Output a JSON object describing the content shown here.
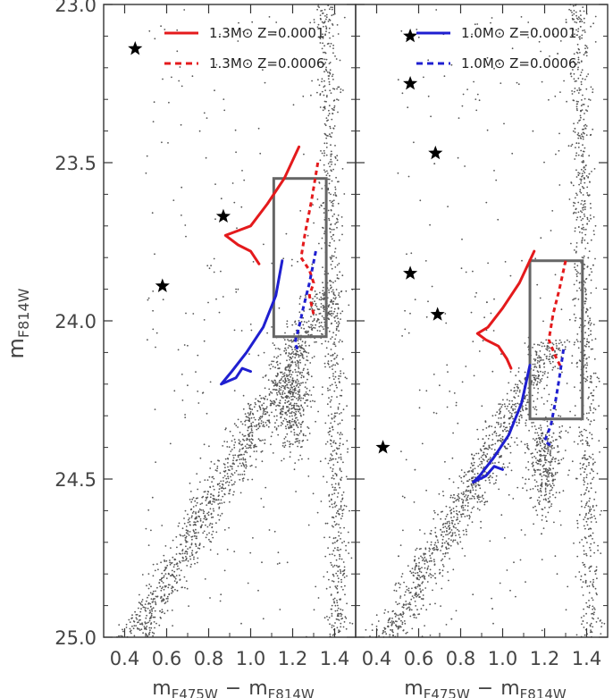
{
  "chart_data": [
    {
      "type": "scatter",
      "panel": "left",
      "xlabel": {
        "main": "m",
        "sub1": "F475W",
        "minus": "−",
        "sub2": "F814W"
      },
      "ylabel": {
        "main": "m",
        "sub": "F814W"
      },
      "xlim": [
        0.3,
        1.5
      ],
      "ylim": [
        25.0,
        23.0
      ],
      "xticks": [
        "0.4",
        "0.6",
        "0.8",
        "1.0",
        "1.2",
        "1.4"
      ],
      "yticks": [
        "23.0",
        "23.5",
        "24.0",
        "24.5",
        "25.0"
      ],
      "legend": [
        {
          "label": "1.3M⊙ Z=0.0001",
          "color": "#e41a1c",
          "style": "solid"
        },
        {
          "label": "1.3M⊙ Z=0.0006",
          "color": "#e41a1c",
          "style": "dashed"
        }
      ],
      "series": [
        {
          "name": "1.3M⊙ Z=0.0001",
          "color": "#e41a1c",
          "style": "solid",
          "points": [
            [
              1.23,
              23.45
            ],
            [
              1.16,
              23.55
            ],
            [
              1.08,
              23.63
            ],
            [
              1.0,
              23.7
            ],
            [
              0.92,
              23.72
            ],
            [
              0.88,
              23.73
            ],
            [
              0.94,
              23.76
            ],
            [
              1.0,
              23.78
            ],
            [
              1.04,
              23.82
            ]
          ]
        },
        {
          "name": "1.3M⊙ Z=0.0006",
          "color": "#e41a1c",
          "style": "dashed",
          "points": [
            [
              1.32,
              23.5
            ],
            [
              1.29,
              23.62
            ],
            [
              1.26,
              23.72
            ],
            [
              1.24,
              23.8
            ],
            [
              1.28,
              23.84
            ],
            [
              1.3,
              23.88
            ],
            [
              1.28,
              23.92
            ],
            [
              1.3,
              23.98
            ]
          ]
        },
        {
          "name": "1.0M⊙ Z=0.0001",
          "color": "#1f1fd0",
          "style": "solid",
          "points": [
            [
              1.15,
              23.81
            ],
            [
              1.12,
              23.92
            ],
            [
              1.06,
              24.02
            ],
            [
              0.98,
              24.1
            ],
            [
              0.91,
              24.16
            ],
            [
              0.86,
              24.2
            ],
            [
              0.93,
              24.18
            ],
            [
              0.96,
              24.15
            ],
            [
              1.0,
              24.16
            ]
          ]
        },
        {
          "name": "1.0M⊙ Z=0.0006",
          "color": "#1f1fd0",
          "style": "dashed",
          "points": [
            [
              1.31,
              23.78
            ],
            [
              1.28,
              23.88
            ],
            [
              1.25,
              23.96
            ],
            [
              1.23,
              24.02
            ],
            [
              1.21,
              24.07
            ],
            [
              1.23,
              24.1
            ]
          ]
        }
      ],
      "stars": [
        [
          0.45,
          23.14
        ],
        [
          0.87,
          23.67
        ],
        [
          0.58,
          23.89
        ]
      ],
      "box": {
        "x": [
          1.11,
          1.36
        ],
        "y": [
          23.55,
          24.05
        ]
      }
    },
    {
      "type": "scatter",
      "panel": "right",
      "xlabel": {
        "main": "m",
        "sub1": "F475W",
        "minus": "−",
        "sub2": "F814W"
      },
      "xlim": [
        0.3,
        1.5
      ],
      "ylim": [
        25.0,
        23.0
      ],
      "xticks": [
        "0.4",
        "0.6",
        "0.8",
        "1.0",
        "1.2",
        "1.4"
      ],
      "legend": [
        {
          "label": "1.0M⊙ Z=0.0001",
          "color": "#1f1fd0",
          "style": "solid"
        },
        {
          "label": "1.0M⊙ Z=0.0006",
          "color": "#1f1fd0",
          "style": "dashed"
        }
      ],
      "series": [
        {
          "name": "1.3M⊙ Z=0.0001",
          "color": "#e41a1c",
          "style": "solid",
          "points": [
            [
              1.15,
              23.78
            ],
            [
              1.08,
              23.88
            ],
            [
              1.0,
              23.96
            ],
            [
              0.93,
              24.02
            ],
            [
              0.88,
              24.04
            ],
            [
              0.92,
              24.06
            ],
            [
              0.98,
              24.08
            ],
            [
              1.02,
              24.12
            ],
            [
              1.04,
              24.15
            ]
          ]
        },
        {
          "name": "1.3M⊙ Z=0.0006",
          "color": "#e41a1c",
          "style": "dashed",
          "points": [
            [
              1.3,
              23.81
            ],
            [
              1.27,
              23.9
            ],
            [
              1.24,
              23.98
            ],
            [
              1.22,
              24.06
            ],
            [
              1.25,
              24.11
            ],
            [
              1.28,
              24.15
            ]
          ]
        },
        {
          "name": "1.0M⊙ Z=0.0001",
          "color": "#1f1fd0",
          "style": "solid",
          "points": [
            [
              1.13,
              24.14
            ],
            [
              1.09,
              24.26
            ],
            [
              1.03,
              24.36
            ],
            [
              0.96,
              24.43
            ],
            [
              0.89,
              24.49
            ],
            [
              0.86,
              24.51
            ],
            [
              0.92,
              24.49
            ],
            [
              0.96,
              24.46
            ],
            [
              1.0,
              24.47
            ]
          ]
        },
        {
          "name": "1.0M⊙ Z=0.0006",
          "color": "#1f1fd0",
          "style": "dashed",
          "points": [
            [
              1.29,
              24.09
            ],
            [
              1.27,
              24.18
            ],
            [
              1.25,
              24.26
            ],
            [
              1.23,
              24.33
            ],
            [
              1.2,
              24.38
            ],
            [
              1.24,
              24.4
            ]
          ]
        }
      ],
      "stars": [
        [
          0.56,
          23.1
        ],
        [
          0.56,
          23.25
        ],
        [
          0.68,
          23.47
        ],
        [
          0.56,
          23.85
        ],
        [
          0.69,
          23.98
        ],
        [
          0.43,
          24.4
        ]
      ],
      "box": {
        "x": [
          1.13,
          1.38
        ],
        "y": [
          23.81,
          24.31
        ]
      }
    }
  ]
}
